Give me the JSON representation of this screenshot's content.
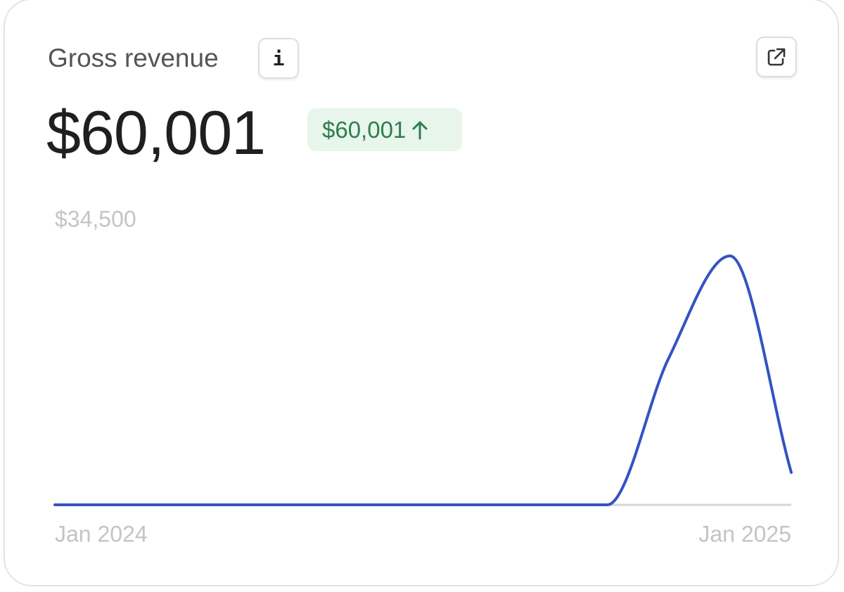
{
  "header": {
    "title": "Gross revenue",
    "info_button": "i",
    "total": "$60,001",
    "change": "$60,001"
  },
  "chart_data": {
    "type": "line",
    "categories": [
      "Jan 2024",
      null,
      null,
      null,
      null,
      null,
      null,
      null,
      null,
      null,
      null,
      null,
      "Jan 2025"
    ],
    "series": [
      {
        "color": "#3453c2",
        "values": [
          0,
          0,
          0,
          0,
          0,
          0,
          0,
          0,
          0,
          0,
          17760,
          30230,
          3930
        ]
      }
    ],
    "ylim": [
      0,
      34500
    ],
    "yticks": [
      {
        "value": 34500,
        "label": "$34,500"
      }
    ]
  }
}
